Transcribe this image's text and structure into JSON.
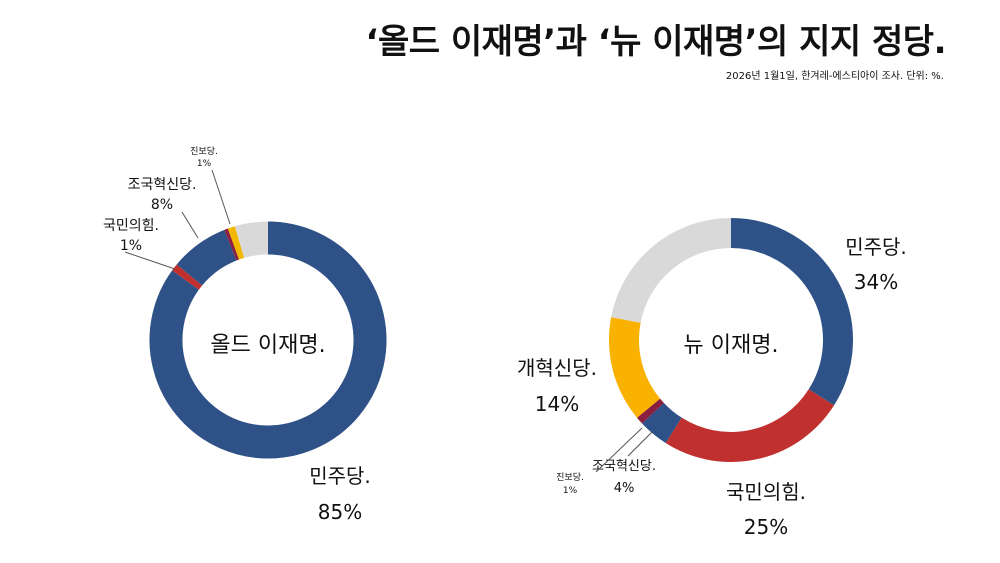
{
  "header": {
    "title": "‘올드 이재명’과 ‘뉴 이재명’의 지지 정당.",
    "subtitle": "2026년 1월1일, 한겨레-에스티아이 조사. 단위: %."
  },
  "chart_data": [
    {
      "type": "pie",
      "center_label": "올드 이재명.",
      "slices": [
        {
          "name": "민주당.",
          "value": 85,
          "value_label": "85%",
          "color": "#2E5288"
        },
        {
          "name": "국민의힘.",
          "value": 1,
          "value_label": "1%",
          "color": "#C0302F"
        },
        {
          "name": "조국혁신당.",
          "value": 8,
          "value_label": "8%",
          "color": "#2E5288"
        },
        {
          "name": "",
          "value": 0.5,
          "value_label": "",
          "color": "#8B1F3F"
        },
        {
          "name": "진보당.",
          "value": 1,
          "value_label": "1%",
          "color": "#F2B800"
        },
        {
          "name": "",
          "value": 4.5,
          "value_label": "",
          "color": "#D9D9D9"
        }
      ]
    },
    {
      "type": "pie",
      "center_label": "뉴 이재명.",
      "slices": [
        {
          "name": "민주당.",
          "value": 34,
          "value_label": "34%",
          "color": "#2E5288"
        },
        {
          "name": "국민의힘.",
          "value": 25,
          "value_label": "25%",
          "color": "#C0302F"
        },
        {
          "name": "조국혁신당.",
          "value": 4,
          "value_label": "4%",
          "color": "#2E5288"
        },
        {
          "name": "진보당.",
          "value": 1,
          "value_label": "1%",
          "color": "#8B1F3F"
        },
        {
          "name": "개혁신당.",
          "value": 14,
          "value_label": "14%",
          "color": "#F9B200"
        },
        {
          "name": "",
          "value": 22,
          "value_label": "",
          "color": "#D9D9D9"
        }
      ]
    }
  ]
}
